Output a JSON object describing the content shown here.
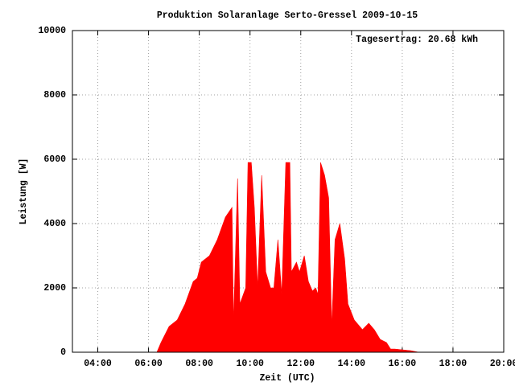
{
  "chart_data": {
    "type": "area",
    "title": "Produktion Solaranlage Serto-Gressel 2009-10-15",
    "annotation": "Tagesertrag: 20.68 kWh",
    "x_label": "Zeit (UTC)",
    "y_label": "Leistung [W]",
    "color": "#ff0000",
    "grid": true,
    "x": [
      6.33,
      6.49,
      6.81,
      7.13,
      7.44,
      7.76,
      7.92,
      8.08,
      8.4,
      8.71,
      9.03,
      9.29,
      9.35,
      9.51,
      9.6,
      9.83,
      9.92,
      10.05,
      10.17,
      10.3,
      10.46,
      10.62,
      10.81,
      10.94,
      11.1,
      11.25,
      11.41,
      11.57,
      11.63,
      11.83,
      11.95,
      12.14,
      12.3,
      12.46,
      12.59,
      12.68,
      12.78,
      12.94,
      13.1,
      13.22,
      13.35,
      13.54,
      13.73,
      13.86,
      14.11,
      14.43,
      14.68,
      14.9,
      15.13,
      15.38,
      15.54,
      15.7,
      16.33,
      16.65
    ],
    "values": [
      0,
      300,
      800,
      1000,
      1500,
      2200,
      2300,
      2800,
      3000,
      3500,
      4200,
      4500,
      900,
      5400,
      1500,
      2000,
      5900,
      5900,
      4500,
      2000,
      5500,
      2500,
      2000,
      2000,
      3500,
      1800,
      5900,
      5900,
      2500,
      2800,
      2500,
      3000,
      2200,
      1900,
      2000,
      1800,
      5900,
      5500,
      4800,
      800,
      3500,
      4000,
      2900,
      1500,
      1000,
      700,
      900,
      700,
      400,
      300,
      100,
      100,
      50,
      0
    ],
    "xlim": [
      3,
      20
    ],
    "xticks": [
      {
        "value": 4,
        "label": "04:00"
      },
      {
        "value": 6,
        "label": "06:00"
      },
      {
        "value": 8,
        "label": "08:00"
      },
      {
        "value": 10,
        "label": "10:00"
      },
      {
        "value": 12,
        "label": "12:00"
      },
      {
        "value": 14,
        "label": "14:00"
      },
      {
        "value": 16,
        "label": "16:00"
      },
      {
        "value": 18,
        "label": "18:00"
      },
      {
        "value": 20,
        "label": "20:00"
      }
    ],
    "ylim": [
      0,
      10000
    ],
    "yticks": [
      0,
      2000,
      4000,
      6000,
      8000,
      10000
    ]
  }
}
